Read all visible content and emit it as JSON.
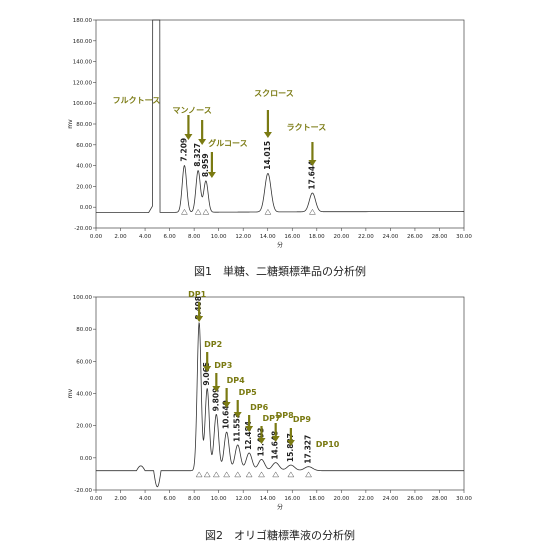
{
  "accent": "#7a7a12",
  "chart_data": [
    {
      "type": "line",
      "caption": "図1　単糖、二糖類標準品の分析例",
      "xlabel": "分",
      "ylabel": "mv",
      "xlim": [
        0,
        30
      ],
      "ylim": [
        -20,
        180
      ],
      "xticks": [
        "0.00",
        "2.00",
        "4.00",
        "6.00",
        "8.00",
        "10.00",
        "12.00",
        "14.00",
        "16.00",
        "18.00",
        "20.00",
        "22.00",
        "24.00",
        "26.00",
        "28.00",
        "30.00"
      ],
      "yticks": [
        "-20.00",
        "0.00",
        "20.00",
        "40.00",
        "60.00",
        "80.00",
        "100.00",
        "120.00",
        "140.00",
        "160.00",
        "180.00"
      ],
      "peaks": [
        {
          "rt": "7.209",
          "x": 7.209,
          "height": 45
        },
        {
          "rt": "8.327",
          "x": 8.327,
          "height": 40
        },
        {
          "rt": "8.959",
          "x": 8.959,
          "height": 30
        },
        {
          "rt": "14.015",
          "x": 14.015,
          "height": 37
        },
        {
          "rt": "17.644",
          "x": 17.644,
          "height": 18
        }
      ],
      "annotations": [
        {
          "text": "フルクトース",
          "peak": 0
        },
        {
          "text": "マンノース",
          "peak": 1
        },
        {
          "text": "グルコース",
          "peak": 2
        },
        {
          "text": "スクロース",
          "peak": 3
        },
        {
          "text": "ラクトース",
          "peak": 4
        }
      ]
    },
    {
      "type": "line",
      "caption": "図2　オリゴ糖標準液の分析例",
      "xlabel": "分",
      "ylabel": "mv",
      "xlim": [
        0,
        30
      ],
      "ylim": [
        -20,
        100
      ],
      "xticks": [
        "0.00",
        "2.00",
        "4.00",
        "6.00",
        "8.00",
        "10.00",
        "12.00",
        "14.00",
        "16.00",
        "18.00",
        "20.00",
        "22.00",
        "24.00",
        "26.00",
        "28.00",
        "30.00"
      ],
      "yticks": [
        "-20.00",
        "0.00",
        "20.00",
        "40.00",
        "60.00",
        "80.00",
        "100.00"
      ],
      "peaks": [
        {
          "rt": "8.408",
          "x": 8.408,
          "height": 92
        },
        {
          "rt": "9.065",
          "x": 9.065,
          "height": 51
        },
        {
          "rt": "9.809",
          "x": 9.809,
          "height": 35
        },
        {
          "rt": "10.649",
          "x": 10.649,
          "height": 24
        },
        {
          "rt": "11.553",
          "x": 11.553,
          "height": 16
        },
        {
          "rt": "12.484",
          "x": 12.484,
          "height": 11
        },
        {
          "rt": "13.493",
          "x": 13.493,
          "height": 7
        },
        {
          "rt": "14.648",
          "x": 14.648,
          "height": 5
        },
        {
          "rt": "15.887",
          "x": 15.887,
          "height": 3.5
        },
        {
          "rt": "17.327",
          "x": 17.327,
          "height": 2.5
        }
      ],
      "annotations": [
        {
          "text": "DP1",
          "peak": 0
        },
        {
          "text": "DP2",
          "peak": 1
        },
        {
          "text": "DP3",
          "peak": 2
        },
        {
          "text": "DP4",
          "peak": 3
        },
        {
          "text": "DP5",
          "peak": 4
        },
        {
          "text": "DP6",
          "peak": 5
        },
        {
          "text": "DP7",
          "peak": 6
        },
        {
          "text": "DP8",
          "peak": 7
        },
        {
          "text": "DP9",
          "peak": 8
        },
        {
          "text": "DP10",
          "peak": 9
        }
      ]
    }
  ]
}
